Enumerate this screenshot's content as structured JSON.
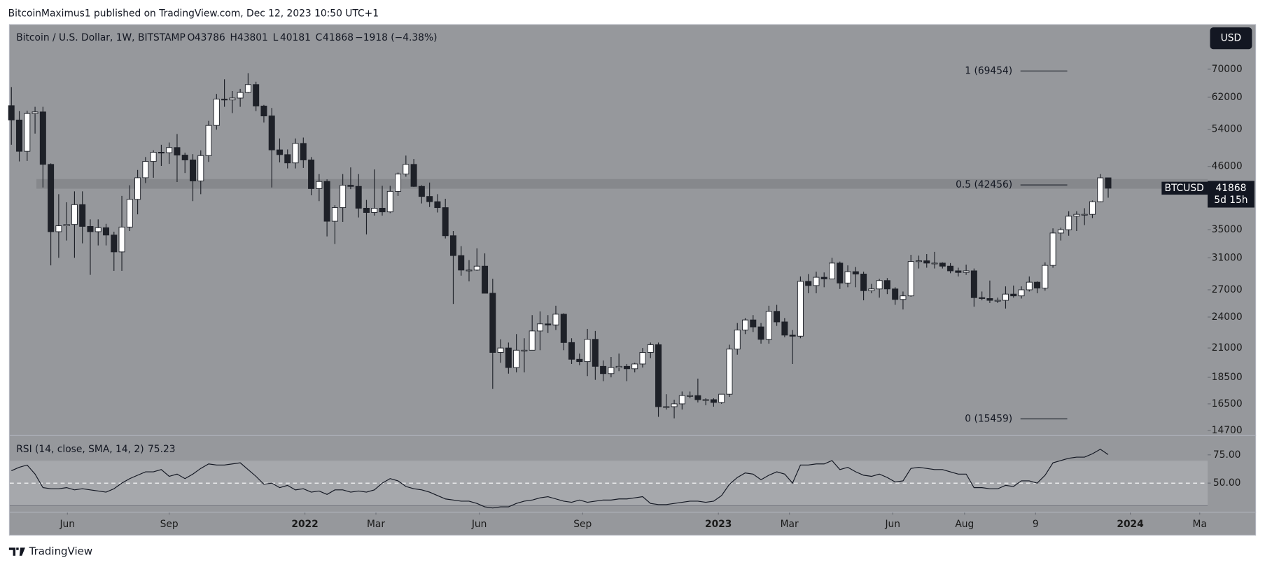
{
  "header": {
    "publisher": "BitcoinMaximus1 published on TradingView.com, Dec 12, 2023 10:50 UTC+1",
    "brand": "TradingView"
  },
  "chart_data": {
    "type": "candlestick",
    "title": "Bitcoin / U.S. Dollar, 1W, BITSTAMP",
    "legend_ohlc": [
      {
        "label": "O",
        "value": 43786
      },
      {
        "label": "H",
        "value": 43801
      },
      {
        "label": "L",
        "value": 40181
      },
      {
        "label": "C",
        "value": 41868
      }
    ],
    "change": "−1918 (−4.38%)",
    "currency": "USD",
    "symbol": "BTCUSD",
    "countdown": "5d 15h",
    "log_scale": true,
    "up_color": "#ffffff",
    "down_color": "#1e2128",
    "open": [
      59800,
      56200,
      49100,
      57800,
      58200,
      46400,
      34700,
      35600,
      35800,
      39000,
      35500,
      34700,
      35300,
      34200,
      31800,
      35400,
      39900,
      43800,
      47000,
      48900,
      48800,
      49900,
      48300,
      47300,
      43200,
      48200,
      54900,
      61500,
      61300,
      61800,
      63300,
      65500,
      59700,
      57200,
      49400,
      48400,
      46700,
      50800,
      47300,
      41800,
      43100,
      36300,
      38500,
      42400,
      42200,
      38400,
      37700,
      38400,
      37800,
      41300,
      44500,
      46400,
      42200,
      40400,
      39500,
      38500,
      34100,
      31300,
      29400,
      29400,
      29900,
      26600,
      20600,
      21000,
      19300,
      20800,
      20800,
      22600,
      23300,
      23200,
      24300,
      21500,
      20000,
      19800,
      21800,
      19400,
      18800,
      19300,
      19400,
      19200,
      19600,
      20600,
      21300,
      16300,
      16300,
      16500,
      17100,
      17100,
      16800,
      16800,
      16600,
      17200,
      20900,
      22700,
      23700,
      23000,
      21800,
      24600,
      23500,
      22200,
      22100,
      28000,
      27500,
      28500,
      28300,
      30300,
      27800,
      29200,
      28900,
      26900,
      27100,
      28100,
      27100,
      25900,
      26300,
      30500,
      30600,
      30300,
      30300,
      29900,
      29300,
      29100,
      29300,
      26100,
      26000,
      25800,
      25800,
      26500,
      26300,
      27000,
      27900,
      27200,
      30000,
      34500,
      35000,
      37100,
      37400,
      37400,
      39500,
      43786
    ],
    "high": [
      64800,
      58400,
      58500,
      59500,
      59500,
      46600,
      40800,
      39400,
      41300,
      41300,
      36600,
      36600,
      35900,
      34700,
      40500,
      42400,
      45300,
      47900,
      49300,
      50500,
      51000,
      52900,
      48800,
      48500,
      49300,
      56000,
      62900,
      67000,
      63700,
      64300,
      68800,
      66300,
      60000,
      59200,
      51900,
      49500,
      51900,
      52100,
      47900,
      44500,
      43500,
      38900,
      44500,
      45800,
      44500,
      39800,
      45400,
      42300,
      42300,
      44800,
      48200,
      47500,
      42400,
      42900,
      40800,
      40000,
      34800,
      32600,
      30700,
      32300,
      31600,
      28300,
      21800,
      21500,
      22300,
      21900,
      24200,
      24600,
      24200,
      25200,
      24400,
      21900,
      20500,
      22800,
      22600,
      19900,
      20200,
      20500,
      19600,
      19700,
      21000,
      21500,
      21500,
      17200,
      16800,
      17400,
      17400,
      18400,
      16900,
      16900,
      17200,
      21300,
      23400,
      23900,
      24200,
      23400,
      25200,
      25300,
      23900,
      22700,
      28600,
      28900,
      29200,
      29100,
      31000,
      30500,
      30000,
      29800,
      29200,
      27700,
      28300,
      28400,
      27300,
      26800,
      31400,
      31300,
      31500,
      31800,
      30400,
      30300,
      29700,
      30100,
      29600,
      26800,
      28100,
      26100,
      27400,
      27500,
      27400,
      28600,
      28000,
      30400,
      35200,
      35300,
      37900,
      37900,
      38400,
      39700,
      44500,
      43801
    ],
    "low": [
      50500,
      47000,
      47100,
      53000,
      42000,
      30000,
      31000,
      33400,
      31000,
      33000,
      28800,
      32700,
      32700,
      29300,
      29300,
      34800,
      37400,
      42800,
      43800,
      46100,
      46500,
      43000,
      44700,
      39600,
      40800,
      46900,
      53900,
      59500,
      57900,
      59500,
      63100,
      58400,
      55600,
      42000,
      46800,
      45600,
      45600,
      45700,
      40600,
      39600,
      34000,
      32900,
      36200,
      41700,
      36900,
      34300,
      37200,
      37200,
      37600,
      40500,
      44000,
      42100,
      39200,
      38600,
      37700,
      33700,
      25400,
      28700,
      28000,
      29300,
      26600,
      17600,
      19700,
      18800,
      18900,
      18900,
      20800,
      20800,
      22400,
      22700,
      20800,
      19600,
      19500,
      18600,
      18300,
      18200,
      18500,
      19000,
      18200,
      18900,
      19300,
      20100,
      15600,
      16100,
      15500,
      16100,
      16900,
      16600,
      16400,
      16300,
      16500,
      17000,
      20400,
      22300,
      22500,
      21400,
      21400,
      23100,
      22000,
      19600,
      21900,
      26600,
      26600,
      27300,
      28300,
      27100,
      27300,
      27300,
      25800,
      26600,
      26100,
      26500,
      25300,
      24800,
      26200,
      29600,
      29700,
      29600,
      29600,
      29000,
      28600,
      28800,
      25100,
      25800,
      25500,
      25500,
      24900,
      26100,
      26000,
      26800,
      26600,
      26900,
      29700,
      33400,
      34100,
      34800,
      35700,
      36800,
      39400,
      40181
    ],
    "close": [
      56200,
      49100,
      57800,
      58200,
      46400,
      34700,
      35600,
      35800,
      39000,
      35500,
      34700,
      35300,
      34200,
      31800,
      35400,
      39900,
      43800,
      47000,
      48900,
      48800,
      49900,
      48300,
      47300,
      43200,
      48200,
      54900,
      61500,
      61300,
      61800,
      63300,
      65500,
      59700,
      57200,
      49400,
      48400,
      46700,
      50800,
      47300,
      41800,
      43100,
      36300,
      38500,
      42400,
      42200,
      38400,
      37700,
      38400,
      37800,
      41300,
      44500,
      46400,
      42200,
      40400,
      39500,
      38500,
      34100,
      31300,
      29400,
      29400,
      29900,
      26600,
      20600,
      21000,
      19300,
      20800,
      20800,
      22600,
      23300,
      23200,
      24300,
      21500,
      20000,
      19800,
      21800,
      19400,
      18800,
      19300,
      19400,
      19200,
      19600,
      20600,
      21300,
      16300,
      16300,
      16500,
      17100,
      17100,
      16800,
      16800,
      16600,
      17200,
      20900,
      22700,
      23700,
      23000,
      21800,
      24600,
      23500,
      22200,
      22100,
      28000,
      27500,
      28500,
      28300,
      30300,
      27800,
      29200,
      28900,
      26900,
      27100,
      28100,
      27100,
      25900,
      26300,
      30500,
      30600,
      30300,
      30300,
      29900,
      29300,
      29100,
      29300,
      26100,
      26000,
      25800,
      25800,
      26500,
      26300,
      27000,
      27900,
      27200,
      30000,
      34500,
      35000,
      37100,
      37400,
      37400,
      39500,
      43786,
      41868
    ],
    "ylim": [
      14390,
      85000
    ],
    "yticks": [
      14700,
      16500,
      18500,
      21000,
      24000,
      27000,
      31000,
      35000,
      46000,
      54000,
      62000,
      70000
    ],
    "xlim": [
      -0.2,
      151.6
    ],
    "xticks": [
      {
        "value": 7.1,
        "label": "Jun"
      },
      {
        "value": 20,
        "label": "Sep"
      },
      {
        "value": 37.2,
        "label": "2022"
      },
      {
        "value": 46.2,
        "label": "Mar"
      },
      {
        "value": 59.3,
        "label": "Jun"
      },
      {
        "value": 72.4,
        "label": "Sep"
      },
      {
        "value": 89.6,
        "label": "2023"
      },
      {
        "value": 98.6,
        "label": "Mar"
      },
      {
        "value": 111.7,
        "label": "Jun"
      },
      {
        "value": 120.8,
        "label": "Aug"
      },
      {
        "value": 129.8,
        "label": "9"
      },
      {
        "value": 141.8,
        "label": "2024"
      },
      {
        "value": 150.6,
        "label": "Ma"
      }
    ],
    "zone": [
      41780,
      43560
    ],
    "fib_levels": [
      {
        "value": 69454,
        "label": "1 (69454)"
      },
      {
        "value": 42456,
        "label": "0.5 (42456)"
      },
      {
        "value": 15459,
        "label": "0 (15459)"
      }
    ],
    "rsi": {
      "label": "RSI (14, close, SMA, 14, 2)",
      "last": 75.23,
      "color": "#131722",
      "ylim": [
        24.3,
        92.1
      ],
      "band": [
        30,
        70
      ],
      "midline": 50,
      "yticks": [
        {
          "value": 50,
          "label": "50.00"
        },
        {
          "value": 75,
          "label": "75.00"
        }
      ],
      "values": [
        61,
        64,
        66,
        58,
        46,
        45,
        45,
        46,
        44,
        45,
        44,
        43,
        42,
        45,
        50,
        54,
        57,
        60,
        60,
        62,
        56,
        58,
        54,
        58,
        63,
        67,
        66,
        66,
        67,
        68,
        62,
        56,
        49,
        50,
        46,
        48,
        44,
        45,
        42,
        43,
        40,
        44,
        44,
        42,
        43,
        42,
        44,
        50,
        54,
        52,
        47,
        45,
        44,
        42,
        39,
        36,
        35,
        34,
        34,
        32,
        29,
        28,
        29,
        29,
        32,
        34,
        35,
        37,
        38,
        36,
        34,
        33,
        35,
        33,
        34,
        35,
        35,
        36,
        36,
        37,
        38,
        32,
        31,
        31,
        32,
        33,
        34,
        34,
        33,
        34,
        39,
        49,
        55,
        59,
        58,
        53,
        57,
        60,
        58,
        50,
        66,
        66,
        67,
        67,
        70,
        62,
        64,
        60,
        57,
        56,
        58,
        55,
        51,
        52,
        63,
        64,
        63,
        62,
        62,
        60,
        58,
        58,
        46,
        46,
        45,
        45,
        48,
        47,
        52,
        52,
        50,
        57,
        68,
        70,
        72,
        73,
        73,
        76,
        80,
        75.23
      ]
    }
  }
}
